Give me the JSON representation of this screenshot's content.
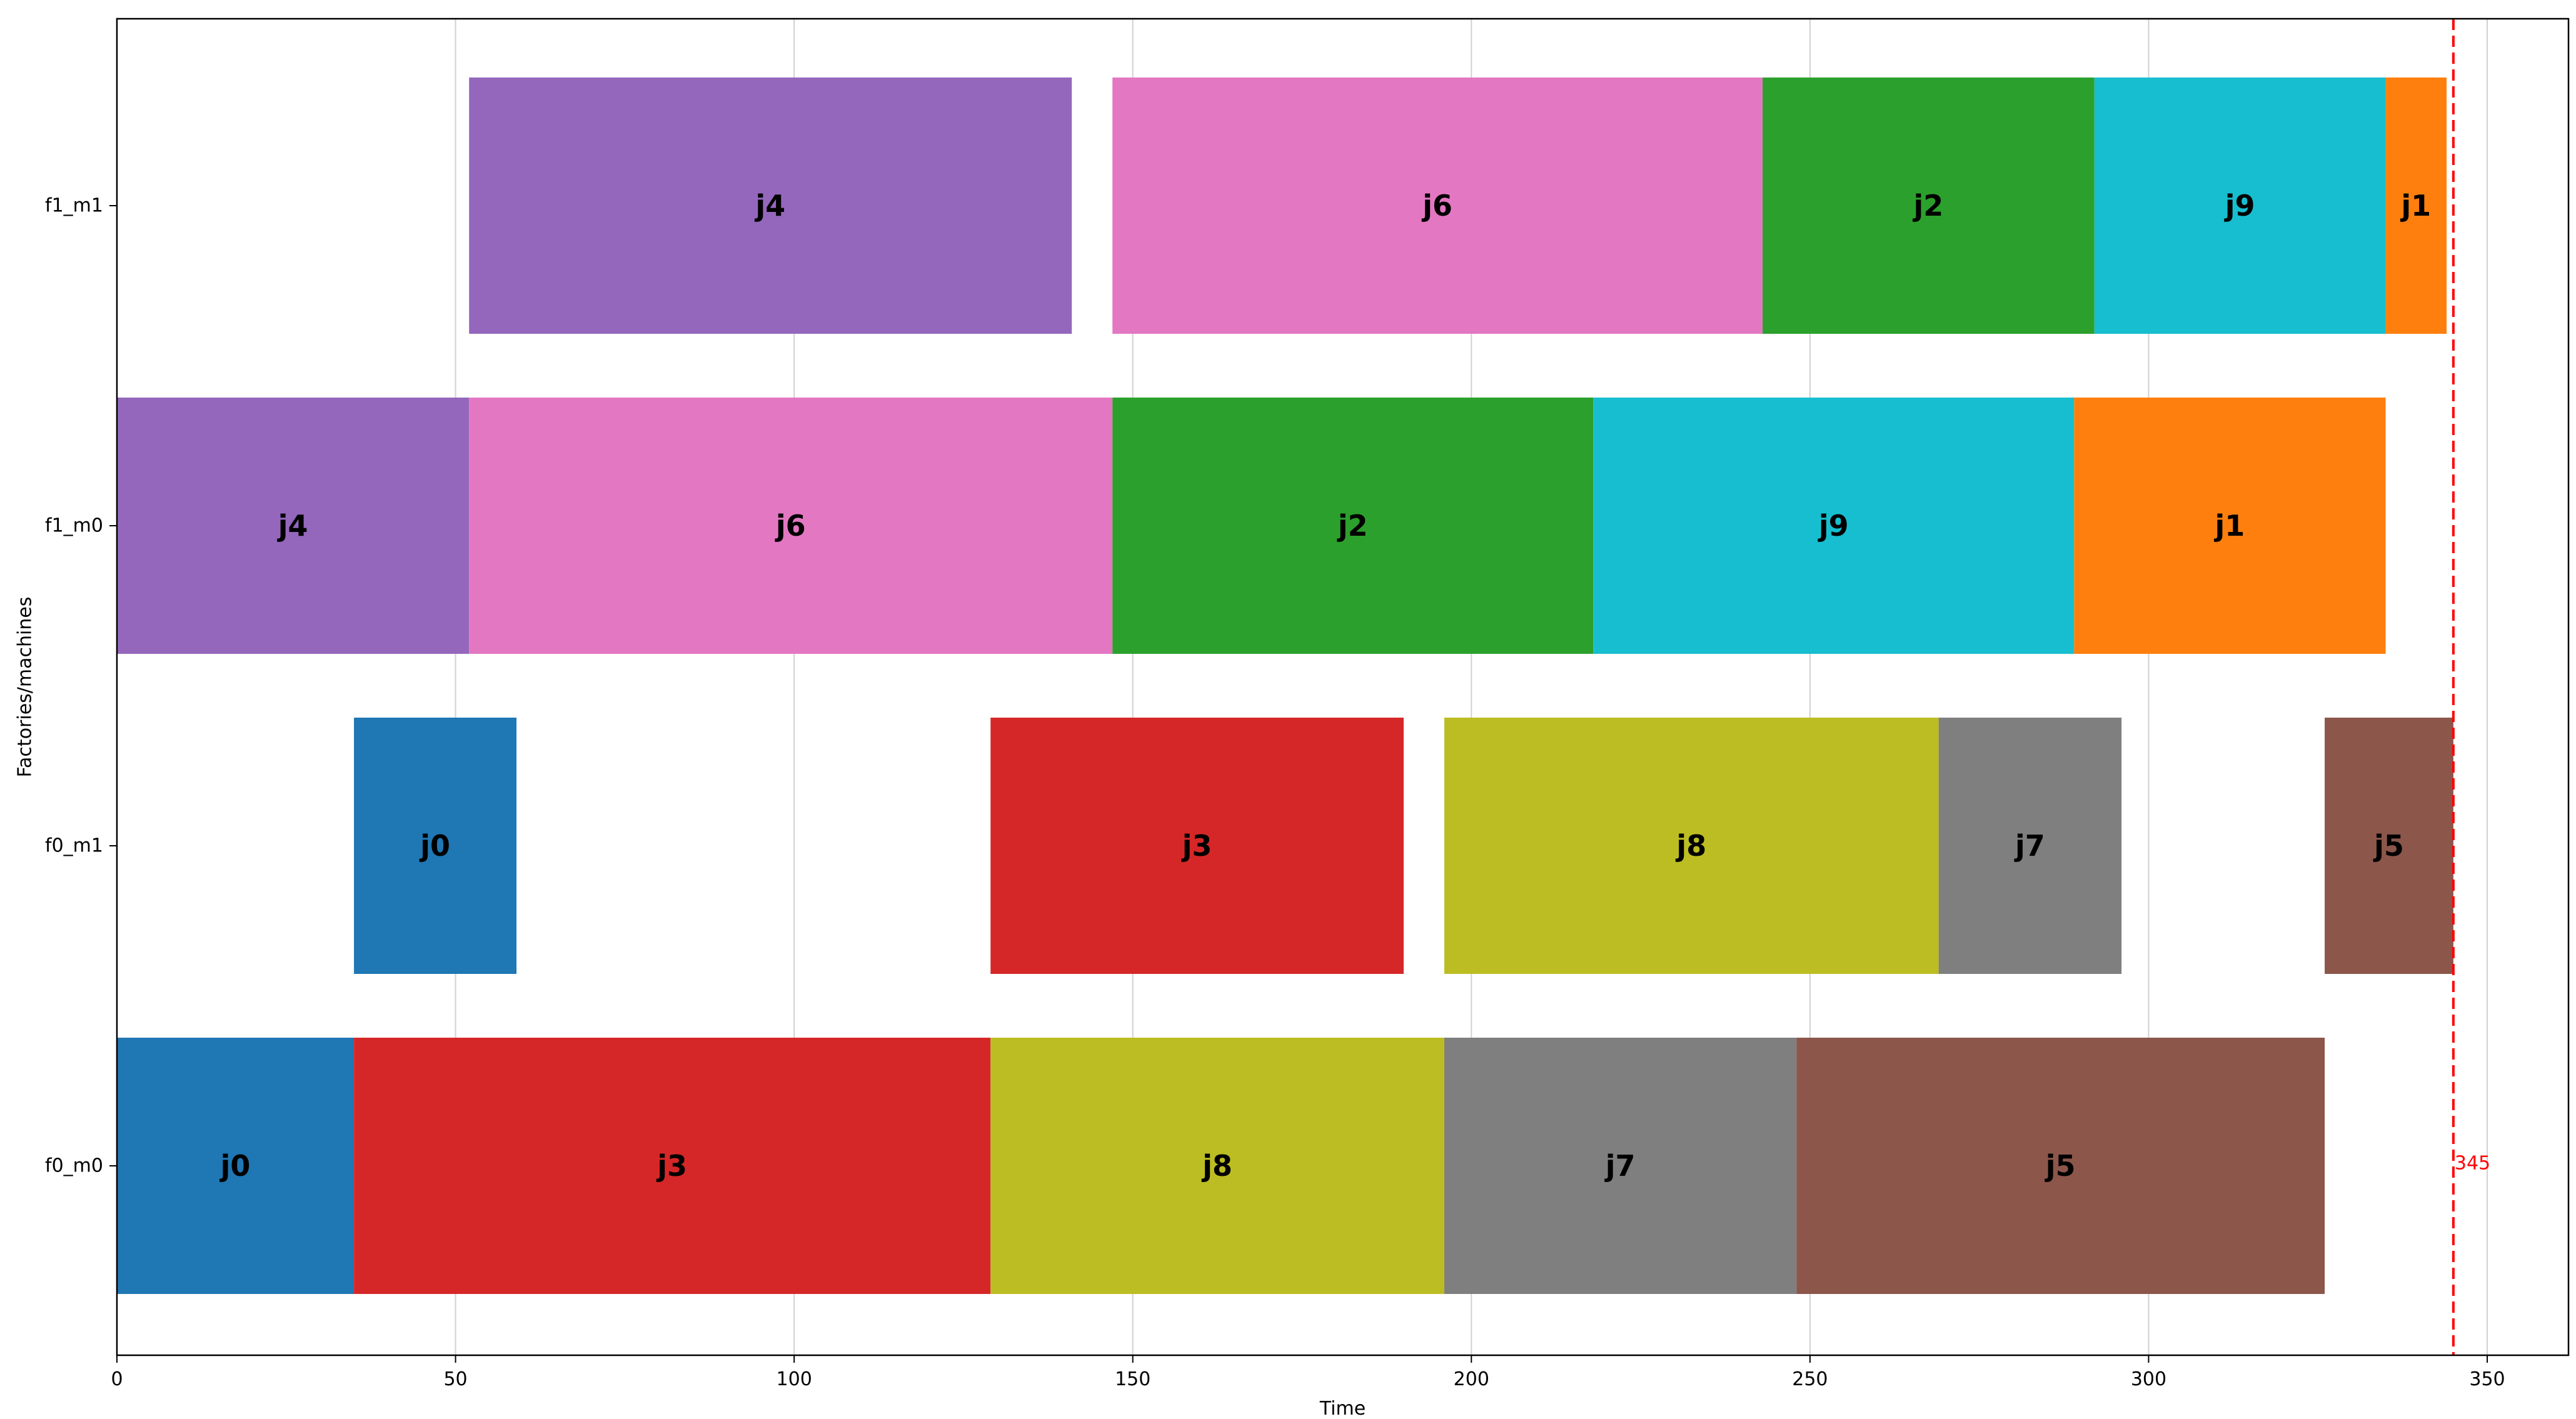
{
  "chart_data": {
    "type": "gantt",
    "xlabel": "Time",
    "ylabel": "Factories/machines",
    "xlim": [
      0,
      362
    ],
    "xticks": [
      0,
      50,
      100,
      150,
      200,
      250,
      300,
      350
    ],
    "grid": "vertical",
    "machines": [
      "f0_m0",
      "f0_m1",
      "f1_m0",
      "f1_m1"
    ],
    "job_colors": {
      "j0": "#1f77b4",
      "j1": "#ff7f0e",
      "j2": "#2ca02c",
      "j3": "#d62728",
      "j4": "#9467bd",
      "j5": "#8c564b",
      "j6": "#e377c2",
      "j7": "#7f7f7f",
      "j8": "#bcbd22",
      "j9": "#17becf"
    },
    "tasks": [
      {
        "machine": "f0_m0",
        "job": "j0",
        "start": 0,
        "end": 35
      },
      {
        "machine": "f0_m0",
        "job": "j3",
        "start": 35,
        "end": 129
      },
      {
        "machine": "f0_m0",
        "job": "j8",
        "start": 129,
        "end": 196
      },
      {
        "machine": "f0_m0",
        "job": "j7",
        "start": 196,
        "end": 248
      },
      {
        "machine": "f0_m0",
        "job": "j5",
        "start": 248,
        "end": 326
      },
      {
        "machine": "f0_m1",
        "job": "j0",
        "start": 35,
        "end": 59
      },
      {
        "machine": "f0_m1",
        "job": "j3",
        "start": 129,
        "end": 190
      },
      {
        "machine": "f0_m1",
        "job": "j8",
        "start": 196,
        "end": 269
      },
      {
        "machine": "f0_m1",
        "job": "j7",
        "start": 269,
        "end": 296
      },
      {
        "machine": "f0_m1",
        "job": "j5",
        "start": 326,
        "end": 345
      },
      {
        "machine": "f1_m0",
        "job": "j4",
        "start": 0,
        "end": 52
      },
      {
        "machine": "f1_m0",
        "job": "j6",
        "start": 52,
        "end": 147
      },
      {
        "machine": "f1_m0",
        "job": "j2",
        "start": 147,
        "end": 218
      },
      {
        "machine": "f1_m0",
        "job": "j9",
        "start": 218,
        "end": 289
      },
      {
        "machine": "f1_m0",
        "job": "j1",
        "start": 289,
        "end": 335
      },
      {
        "machine": "f1_m1",
        "job": "j4",
        "start": 52,
        "end": 141
      },
      {
        "machine": "f1_m1",
        "job": "j6",
        "start": 147,
        "end": 243
      },
      {
        "machine": "f1_m1",
        "job": "j2",
        "start": 243,
        "end": 292
      },
      {
        "machine": "f1_m1",
        "job": "j9",
        "start": 292,
        "end": 335
      },
      {
        "machine": "f1_m1",
        "job": "j1",
        "start": 335,
        "end": 344
      }
    ],
    "makespan": 345,
    "makespan_label": "345",
    "makespan_color": "#ff0000"
  }
}
